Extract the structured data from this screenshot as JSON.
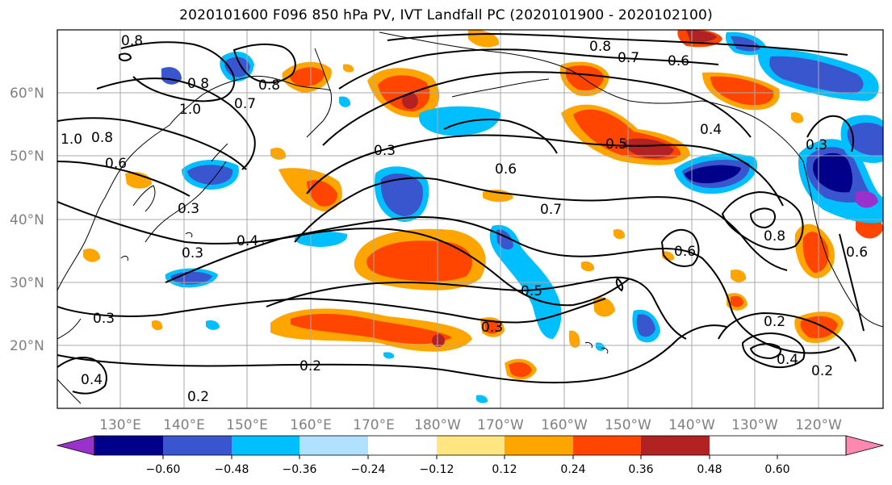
{
  "title": "2020101600 F096 850 hPa PV, IVT Landfall PC (2020101900 - 2020102100)",
  "map": {
    "lat_ticks": [
      "20°N",
      "30°N",
      "40°N",
      "50°N",
      "60°N"
    ],
    "lon_ticks": [
      "130°E",
      "140°E",
      "150°E",
      "160°E",
      "170°E",
      "180°W",
      "170°W",
      "160°W",
      "150°W",
      "140°W",
      "130°W",
      "120°W"
    ],
    "grid": true
  },
  "colorbar": {
    "labels": [
      "−0.60",
      "−0.48",
      "−0.36",
      "−0.24",
      "−0.12",
      "0.12",
      "0.24",
      "0.36",
      "0.48",
      "0.60"
    ],
    "colors": [
      "#9932cc",
      "#00008b",
      "#3a56cf",
      "#00bfff",
      "#b0e2ff",
      "#ffffff",
      "#ffe680",
      "#ffa500",
      "#ff4500",
      "#b22222",
      "#ff88b0"
    ]
  },
  "contour_labels": [
    {
      "text": "0.8"
    },
    {
      "text": "0.8"
    },
    {
      "text": "0.8"
    },
    {
      "text": "1.0"
    },
    {
      "text": "0.7"
    },
    {
      "text": "0.8"
    },
    {
      "text": "1.0"
    },
    {
      "text": "0.6"
    },
    {
      "text": "0.3"
    },
    {
      "text": "0.4"
    },
    {
      "text": "0.3"
    },
    {
      "text": "0.3"
    },
    {
      "text": "0.4"
    },
    {
      "text": "0.2"
    },
    {
      "text": "0.2"
    },
    {
      "text": "0.3"
    },
    {
      "text": "0.6"
    },
    {
      "text": "0.7"
    },
    {
      "text": "0.5"
    },
    {
      "text": "0.5"
    },
    {
      "text": "0.8"
    },
    {
      "text": "0.7"
    },
    {
      "text": "0.6"
    },
    {
      "text": "0.4"
    },
    {
      "text": "0.3"
    },
    {
      "text": "0.6"
    },
    {
      "text": "0.8"
    },
    {
      "text": "0.6"
    },
    {
      "text": "0.2"
    },
    {
      "text": "0.3"
    },
    {
      "text": "0.4"
    },
    {
      "text": "0.2"
    }
  ]
}
